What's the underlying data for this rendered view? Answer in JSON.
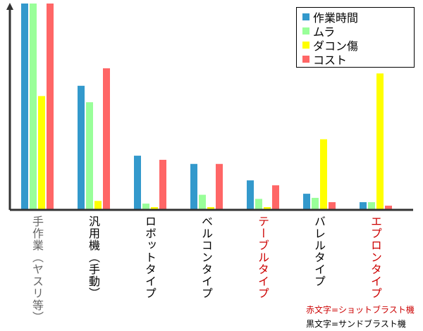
{
  "chart_data": {
    "type": "bar",
    "title": "",
    "xlabel": "",
    "ylabel": "",
    "ylim": [
      0,
      100
    ],
    "grid": false,
    "legend_position": "top-right",
    "categories": [
      "手作業（ヤスリ等）",
      "汎用機（手動）",
      "ロボットタイプ",
      "ベルコンタイプ",
      "テーブルタイプ",
      "バレルタイプ",
      "エプロンタイプ"
    ],
    "category_colors": [
      "#666666",
      "#000000",
      "#000000",
      "#000000",
      "#cc0000",
      "#000000",
      "#cc0000"
    ],
    "series": [
      {
        "name": "作業時間",
        "color": "#3399cc",
        "values": [
          100,
          60,
          26,
          22,
          14,
          7.5,
          3.4
        ]
      },
      {
        "name": "ムラ",
        "color": "#99ff99",
        "values": [
          100,
          52,
          2.7,
          7,
          5,
          5.5,
          3.4
        ]
      },
      {
        "name": "ダコン傷",
        "color": "#ffff00",
        "values": [
          55,
          4,
          1,
          1,
          1,
          34,
          66
        ]
      },
      {
        "name": "コスト",
        "color": "#ff6666",
        "values": [
          100,
          68.5,
          24,
          22,
          11.6,
          3.4,
          1.7
        ]
      }
    ]
  },
  "notes": {
    "red": "赤文字=ショットブラスト機",
    "black": "黒文字=サンドブラスト機",
    "red_color": "#cc0000",
    "black_color": "#000000"
  }
}
